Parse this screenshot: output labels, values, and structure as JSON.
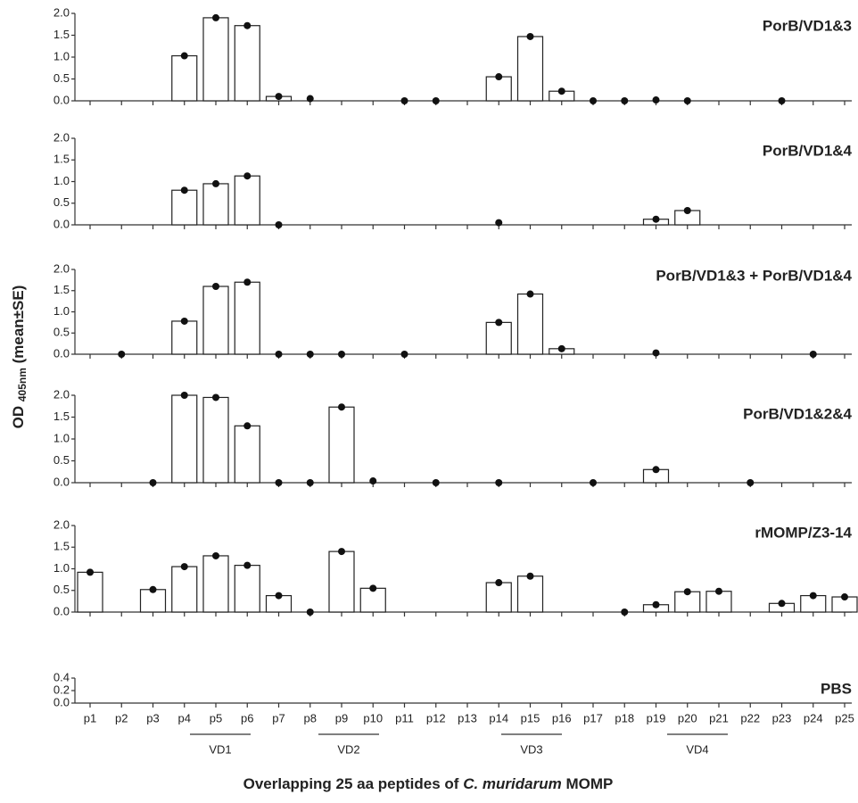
{
  "chart_data": [
    {
      "type": "bar",
      "title": "PorB/VD1&3",
      "values": [
        null,
        null,
        null,
        1.03,
        1.9,
        1.72,
        0.1,
        0.05,
        null,
        null,
        0,
        0,
        null,
        0.55,
        1.47,
        0.22,
        0,
        0,
        0.02,
        0,
        null,
        null,
        0,
        null,
        null
      ],
      "ylim": [
        0,
        2
      ],
      "yticks": [
        {
          "value": 0,
          "label": "0.0"
        },
        0.5,
        {
          "value": 1,
          "label": "1.0"
        },
        1.5,
        {
          "value": 2,
          "label": "2.0"
        }
      ]
    },
    {
      "type": "bar",
      "title": "PorB/VD1&4",
      "values": [
        null,
        null,
        null,
        0.8,
        0.95,
        1.13,
        0,
        null,
        null,
        null,
        null,
        null,
        null,
        0.05,
        null,
        null,
        null,
        null,
        0.13,
        0.33,
        null,
        null,
        null,
        null,
        null
      ],
      "ylim": [
        0,
        2
      ],
      "yticks": [
        {
          "value": 0,
          "label": "0.0"
        },
        0.5,
        {
          "value": 1,
          "label": "1.0"
        },
        1.5,
        {
          "value": 2,
          "label": "2.0"
        }
      ]
    },
    {
      "type": "bar",
      "title": "PorB/VD1&3 + PorB/VD1&4",
      "ylabel_parts": [
        "OD",
        "405nm",
        "(mean±SE)"
      ],
      "values": [
        null,
        0,
        null,
        0.78,
        1.6,
        1.7,
        0,
        0,
        0,
        null,
        0,
        null,
        null,
        0.75,
        1.42,
        0.13,
        null,
        null,
        0.03,
        null,
        null,
        null,
        null,
        0,
        null
      ],
      "ylim": [
        0,
        2
      ],
      "yticks": [
        {
          "value": 0,
          "label": "0.0"
        },
        0.5,
        {
          "value": 1,
          "label": "1.0"
        },
        1.5,
        {
          "value": 2,
          "label": "2.0"
        }
      ]
    },
    {
      "type": "bar",
      "title": "PorB/VD1&2&4",
      "values": [
        null,
        null,
        0,
        2.0,
        1.95,
        1.3,
        0,
        0,
        1.73,
        0.04,
        null,
        0,
        null,
        0,
        null,
        null,
        0,
        null,
        0.3,
        null,
        null,
        0,
        null,
        null,
        null
      ],
      "ylim": [
        0,
        2
      ],
      "yticks": [
        {
          "value": 0,
          "label": "0.0"
        },
        0.5,
        {
          "value": 1,
          "label": "1.0"
        },
        1.5,
        {
          "value": 2,
          "label": "2.0"
        }
      ]
    },
    {
      "type": "bar",
      "title": "rMOMP/Z3-14",
      "values": [
        0.92,
        null,
        0.52,
        1.05,
        1.3,
        1.08,
        0.38,
        0,
        1.4,
        0.55,
        null,
        null,
        null,
        0.68,
        0.83,
        null,
        null,
        0,
        0.17,
        0.47,
        0.48,
        null,
        0.2,
        0.38,
        0.35
      ],
      "ylim": [
        0,
        2
      ],
      "yticks": [
        {
          "value": 0,
          "label": "0.0"
        },
        0.5,
        {
          "value": 1,
          "label": "1.0"
        },
        1.5,
        {
          "value": 2,
          "label": "2.0"
        }
      ]
    },
    {
      "type": "bar",
      "title": "PBS",
      "categories": [
        "p1",
        "p2",
        "p3",
        "p4",
        "p5",
        "p6",
        "p7",
        "p8",
        "p9",
        "p10",
        "p11",
        "p12",
        "p13",
        "p14",
        "p15",
        "p16",
        "p17",
        "p18",
        "p19",
        "p20",
        "p21",
        "p22",
        "p23",
        "p24",
        "p25"
      ],
      "values": [
        null,
        null,
        null,
        null,
        null,
        null,
        null,
        null,
        null,
        null,
        null,
        null,
        null,
        null,
        null,
        null,
        null,
        null,
        null,
        null,
        null,
        null,
        null,
        null,
        null
      ],
      "ylim": [
        0,
        0.4
      ],
      "yticks": [
        {
          "value": 0,
          "label": "0.0"
        },
        0.2,
        0.4
      ],
      "annotations": [
        "VD1",
        "VD2",
        "VD3",
        "VD4"
      ],
      "xlabel_parts": [
        "Overlapping 25 aa peptides of",
        "C. muridarum",
        "MOMP"
      ]
    }
  ]
}
